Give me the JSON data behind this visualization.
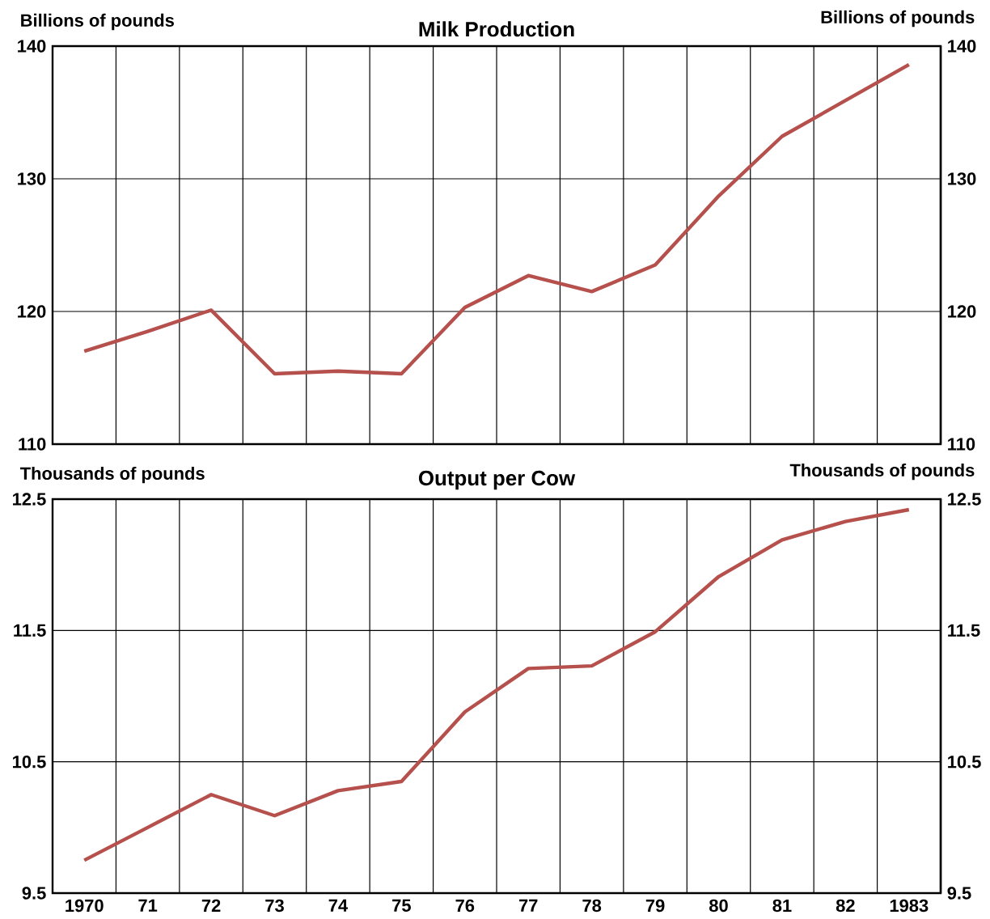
{
  "chart_data": [
    {
      "type": "line",
      "title": "Milk Production",
      "ylabel": "Billions of  pounds",
      "y2label": "Billions of  pounds",
      "categories": [
        "1970",
        "71",
        "72",
        "73",
        "74",
        "75",
        "76",
        "77",
        "78",
        "79",
        "80",
        "81",
        "82",
        "1983"
      ],
      "values": [
        117.0,
        118.5,
        120.1,
        115.3,
        115.5,
        115.3,
        120.3,
        122.7,
        121.5,
        123.5,
        128.7,
        133.2,
        135.9,
        138.6
      ],
      "color": "#b5504c",
      "ylim": [
        110,
        140
      ],
      "yticks": [
        110,
        120,
        130,
        140
      ],
      "y2lim": [
        110,
        140
      ],
      "y2ticks": [
        110,
        120,
        130,
        140
      ],
      "grid": true,
      "tick_labels": "y"
    },
    {
      "type": "line",
      "title": "Output per Cow",
      "ylabel": "Thousands of pounds",
      "y2label": "Thousands of pounds",
      "categories": [
        "1970",
        "71",
        "72",
        "73",
        "74",
        "75",
        "76",
        "77",
        "78",
        "79",
        "80",
        "81",
        "82",
        "1983"
      ],
      "values": [
        9.75,
        10.0,
        10.25,
        10.09,
        10.28,
        10.35,
        10.88,
        11.21,
        11.23,
        11.49,
        11.91,
        12.19,
        12.33,
        12.42
      ],
      "color": "#b5504c",
      "ylim": [
        9.5,
        12.5
      ],
      "yticks": [
        9.5,
        10.5,
        11.5,
        12.5
      ],
      "y2lim": [
        9.5,
        12.5
      ],
      "y2ticks": [
        9.5,
        10.5,
        11.5,
        12.5
      ],
      "grid": true
    }
  ]
}
